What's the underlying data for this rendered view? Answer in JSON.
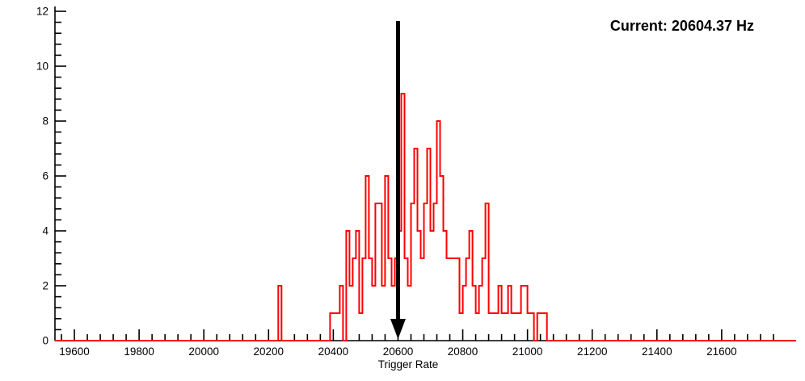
{
  "chart_data": {
    "type": "bar",
    "style": "step-histogram",
    "title": "",
    "xlabel": "Trigger Rate",
    "ylabel": "",
    "xlim": [
      19540,
      21830
    ],
    "ylim": [
      0,
      12
    ],
    "x_major_ticks": [
      19600,
      19800,
      20000,
      20200,
      20400,
      20600,
      20800,
      21000,
      21200,
      21400,
      21600
    ],
    "x_minor_tick_step": 40,
    "y_major_ticks": [
      0,
      2,
      4,
      6,
      8,
      10,
      12
    ],
    "y_minor_tick_step": 0.4,
    "bin_width": 10,
    "bins_start": 20230,
    "counts": [
      2,
      0,
      0,
      0,
      0,
      0,
      0,
      0,
      0,
      0,
      0,
      0,
      0,
      0,
      0,
      0,
      1,
      1,
      1,
      2,
      0,
      4,
      2,
      3,
      4,
      1,
      3,
      6,
      3,
      2,
      5,
      5,
      2,
      6,
      3,
      2,
      3,
      4,
      9,
      3,
      2,
      5,
      7,
      4,
      3,
      5,
      7,
      4,
      5,
      8,
      6,
      4,
      3,
      3,
      3,
      3,
      1,
      2,
      3,
      4,
      2,
      1,
      2,
      3,
      5,
      1,
      1,
      1,
      2,
      1,
      1,
      2,
      1,
      1,
      1,
      2,
      2,
      1,
      1,
      0,
      1,
      1,
      1
    ],
    "arrow_x": 20600,
    "annotation_text": "Current: 20604.37 Hz",
    "colors": {
      "histogram": "#ff0000",
      "axis": "#000000",
      "arrow": "#000000",
      "text": "#000000",
      "background": "#ffffff"
    },
    "legend": "none",
    "grid": "off"
  }
}
